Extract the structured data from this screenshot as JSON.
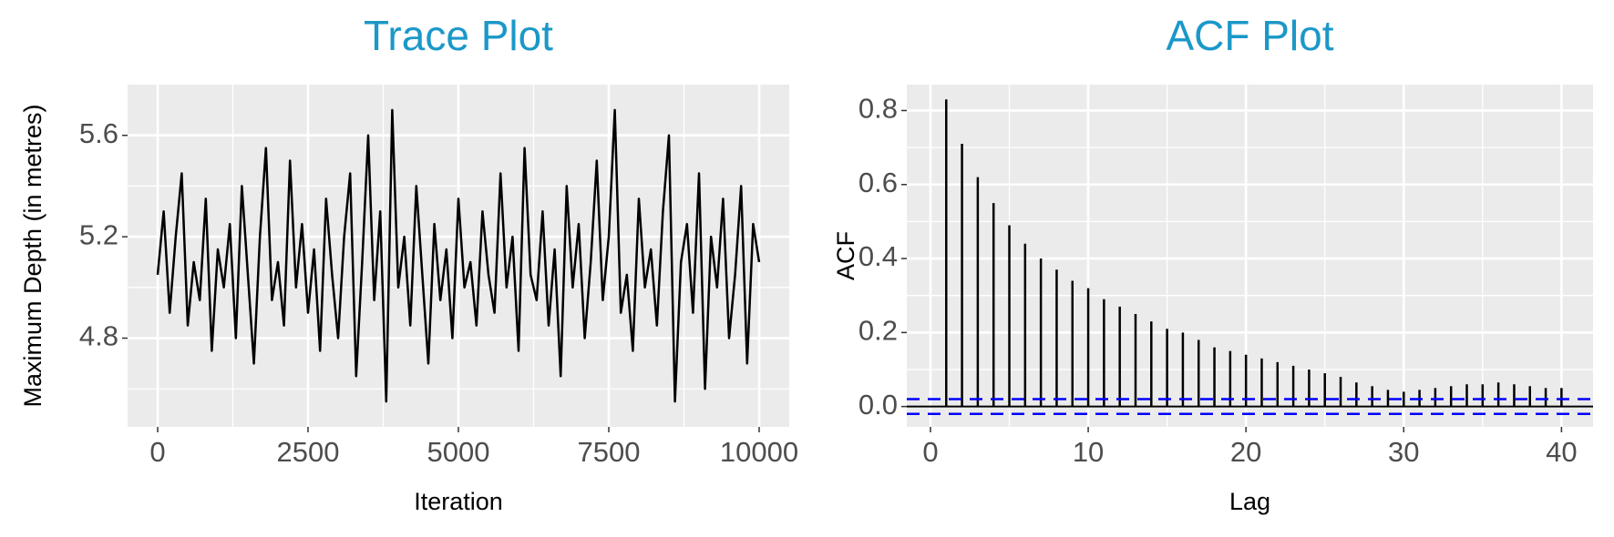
{
  "chart_data": [
    {
      "type": "line",
      "title": "Trace Plot",
      "xlabel": "Iteration",
      "ylabel": "Maximum Depth (in metres)",
      "x": [
        0,
        100,
        200,
        300,
        400,
        500,
        600,
        700,
        800,
        900,
        1000,
        1100,
        1200,
        1300,
        1400,
        1500,
        1600,
        1700,
        1800,
        1900,
        2000,
        2100,
        2200,
        2300,
        2400,
        2500,
        2600,
        2700,
        2800,
        2900,
        3000,
        3100,
        3200,
        3300,
        3400,
        3500,
        3600,
        3700,
        3800,
        3900,
        4000,
        4100,
        4200,
        4300,
        4400,
        4500,
        4600,
        4700,
        4800,
        4900,
        5000,
        5100,
        5200,
        5300,
        5400,
        5500,
        5600,
        5700,
        5800,
        5900,
        6000,
        6100,
        6200,
        6300,
        6400,
        6500,
        6600,
        6700,
        6800,
        6900,
        7000,
        7100,
        7200,
        7300,
        7400,
        7500,
        7600,
        7700,
        7800,
        7900,
        8000,
        8100,
        8200,
        8300,
        8400,
        8500,
        8600,
        8700,
        8800,
        8900,
        9000,
        9100,
        9200,
        9300,
        9400,
        9500,
        9600,
        9700,
        9800,
        9900,
        10000
      ],
      "values": [
        5.05,
        5.3,
        4.9,
        5.2,
        5.45,
        4.85,
        5.1,
        4.95,
        5.35,
        4.75,
        5.15,
        5.0,
        5.25,
        4.8,
        5.4,
        5.05,
        4.7,
        5.2,
        5.55,
        4.95,
        5.1,
        4.85,
        5.5,
        5.0,
        5.25,
        4.9,
        5.15,
        4.75,
        5.35,
        5.05,
        4.8,
        5.2,
        5.45,
        4.65,
        5.1,
        5.6,
        4.95,
        5.3,
        4.55,
        5.7,
        5.0,
        5.2,
        4.85,
        5.4,
        5.05,
        4.7,
        5.25,
        4.95,
        5.15,
        4.8,
        5.35,
        5.0,
        5.1,
        4.85,
        5.3,
        5.05,
        4.9,
        5.45,
        5.0,
        5.2,
        4.75,
        5.55,
        5.05,
        4.95,
        5.3,
        4.85,
        5.15,
        4.65,
        5.4,
        5.0,
        5.25,
        4.8,
        5.1,
        5.5,
        4.95,
        5.2,
        5.7,
        4.9,
        5.05,
        4.75,
        5.35,
        5.0,
        5.15,
        4.85,
        5.3,
        5.6,
        4.55,
        5.1,
        5.25,
        4.9,
        5.45,
        4.6,
        5.2,
        5.0,
        5.35,
        4.8,
        5.05,
        5.4,
        4.7,
        5.25,
        5.1
      ],
      "color": "#000000",
      "xlim": [
        -500,
        10500
      ],
      "xticks": [
        0,
        2500,
        5000,
        7500,
        10000
      ],
      "x_minor_ticks": [
        1250,
        3750,
        6250,
        8750
      ],
      "ylim": [
        4.45,
        5.8
      ],
      "yticks": [
        4.8,
        5.2,
        5.6
      ],
      "y_minor_ticks": [
        4.6,
        5.0,
        5.4
      ],
      "grid": true
    },
    {
      "type": "bar",
      "title": "ACF Plot",
      "xlabel": "Lag",
      "ylabel": "ACF",
      "x": [
        1,
        2,
        3,
        4,
        5,
        6,
        7,
        8,
        9,
        10,
        11,
        12,
        13,
        14,
        15,
        16,
        17,
        18,
        19,
        20,
        21,
        22,
        23,
        24,
        25,
        26,
        27,
        28,
        29,
        30,
        31,
        32,
        33,
        34,
        35,
        36,
        37,
        38,
        39,
        40
      ],
      "values": [
        0.83,
        0.71,
        0.62,
        0.55,
        0.49,
        0.44,
        0.4,
        0.37,
        0.34,
        0.32,
        0.29,
        0.27,
        0.25,
        0.23,
        0.21,
        0.2,
        0.18,
        0.16,
        0.15,
        0.14,
        0.13,
        0.12,
        0.11,
        0.1,
        0.09,
        0.08,
        0.065,
        0.055,
        0.045,
        0.04,
        0.045,
        0.05,
        0.055,
        0.06,
        0.06,
        0.065,
        0.06,
        0.055,
        0.05,
        0.05
      ],
      "color": "#000000",
      "confidence_limits": [
        0.02,
        -0.02
      ],
      "ci_color": "#0000ff",
      "xlim": [
        -1.5,
        42
      ],
      "xticks": [
        0,
        10,
        20,
        30,
        40
      ],
      "x_minor_ticks": [
        5,
        15,
        25,
        35
      ],
      "ylim": [
        -0.055,
        0.87
      ],
      "yticks": [
        {
          "value": 0,
          "label": "0.0"
        },
        0.2,
        0.4,
        0.6,
        0.8
      ],
      "y_minor_ticks": [
        0.1,
        0.3,
        0.5,
        0.7
      ],
      "grid": true
    }
  ]
}
